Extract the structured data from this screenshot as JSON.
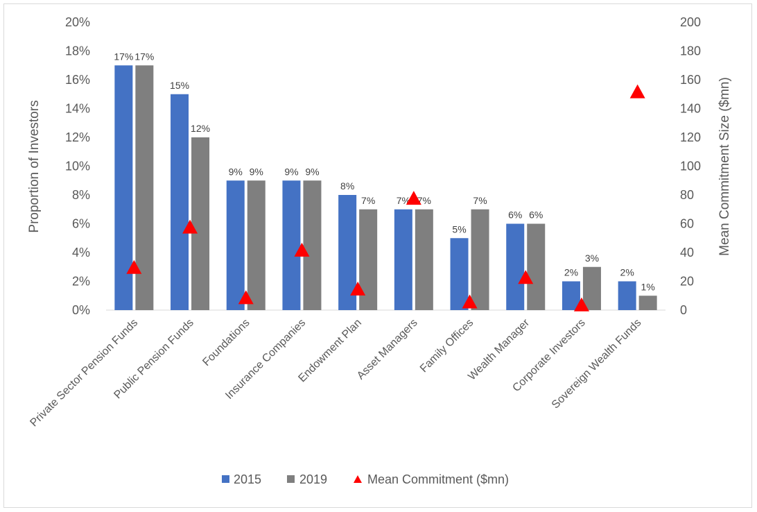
{
  "chart_data": {
    "type": "bar",
    "categories": [
      "Private Sector Pension Funds",
      "Public Pension Funds",
      "Foundations",
      "Insurance Companies",
      "Endowment Plan",
      "Asset Managers",
      "Family Offices",
      "Wealth Manager",
      "Corporate Investors",
      "Sovereign Wealth Funds"
    ],
    "series": [
      {
        "name": "2015",
        "axis": "left",
        "color": "#4472c4",
        "values": [
          17,
          15,
          9,
          9,
          8,
          7,
          5,
          6,
          2,
          2
        ],
        "labels": [
          "17%",
          "15%",
          "9%",
          "9%",
          "8%",
          "7%",
          "5%",
          "6%",
          "2%",
          "2%"
        ]
      },
      {
        "name": "2019",
        "axis": "left",
        "color": "#7f7f7f",
        "values": [
          17,
          12,
          9,
          9,
          7,
          7,
          7,
          6,
          3,
          1
        ],
        "labels": [
          "17%",
          "12%",
          "9%",
          "9%",
          "7%",
          "7%",
          "7%",
          "6%",
          "3%",
          "1%"
        ]
      },
      {
        "name": "Mean Commitment ($mn)",
        "axis": "right",
        "marker": "triangle",
        "color": "#ff0000",
        "values": [
          30,
          58,
          9,
          42,
          15,
          78,
          6,
          23,
          4,
          152
        ]
      }
    ],
    "ylabel": "Proportion of Investors",
    "y2label": "Mean Commitment Size ($mn)",
    "ylim": [
      0,
      20
    ],
    "y2lim": [
      0,
      200
    ],
    "yticks": [
      "0%",
      "2%",
      "4%",
      "6%",
      "8%",
      "10%",
      "12%",
      "14%",
      "16%",
      "18%",
      "20%"
    ],
    "y2ticks": [
      "0",
      "20",
      "40",
      "60",
      "80",
      "100",
      "120",
      "140",
      "160",
      "180",
      "200"
    ],
    "legend_position": "bottom",
    "grid": false
  }
}
